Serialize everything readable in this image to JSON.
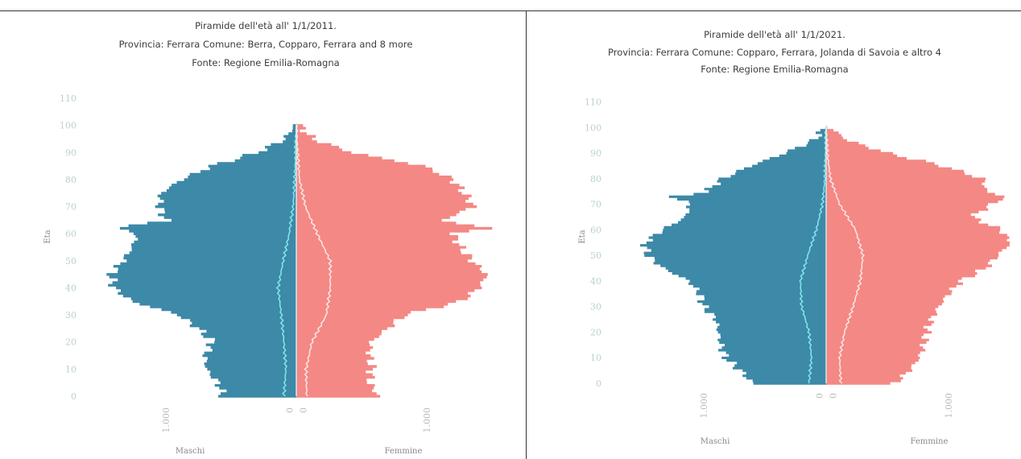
{
  "colors": {
    "male": "#3d89a8",
    "female": "#f48884",
    "male_line": "#7fe3ea",
    "female_line": "#fbe3e2",
    "center_line": "#dbeef4"
  },
  "chart_data": [
    {
      "type": "bar",
      "orientation": "horizontal-population-pyramid",
      "title_lines": [
        "Piramide dell'età all' 1/1/2011.",
        "Provincia: Ferrara  Comune: Berra, Copparo, Ferrara and 8 more",
        "Fonte: Regione Emilia-Romagna"
      ],
      "ylabel": "Eta",
      "y_ticks": [
        "0",
        "10",
        "20",
        "30",
        "40",
        "50",
        "60",
        "70",
        "80",
        "90",
        "100",
        "110"
      ],
      "x_tick_labels": [
        "1.000",
        "0",
        "0",
        "1.000"
      ],
      "left_label": "Maschi",
      "right_label": "Femmine",
      "ylim": [
        0,
        113
      ],
      "xlim": [
        -1600,
        1600
      ],
      "age_profile": [
        [
          0,
          560,
          630
        ],
        [
          5,
          600,
          560
        ],
        [
          10,
          690,
          580
        ],
        [
          15,
          700,
          560
        ],
        [
          20,
          640,
          570
        ],
        [
          25,
          750,
          700
        ],
        [
          30,
          900,
          830
        ],
        [
          35,
          1260,
          1260
        ],
        [
          40,
          1400,
          1400
        ],
        [
          45,
          1420,
          1460
        ],
        [
          50,
          1330,
          1350
        ],
        [
          55,
          1260,
          1260
        ],
        [
          60,
          1220,
          1200
        ],
        [
          62,
          1380,
          1480
        ],
        [
          65,
          1000,
          1120
        ],
        [
          70,
          1050,
          1360
        ],
        [
          75,
          1040,
          1290
        ],
        [
          80,
          880,
          1200
        ],
        [
          85,
          650,
          980
        ],
        [
          90,
          300,
          430
        ],
        [
          95,
          90,
          130
        ],
        [
          100,
          15,
          25
        ]
      ],
      "male_foreign": [
        [
          0,
          95
        ],
        [
          10,
          80
        ],
        [
          20,
          95
        ],
        [
          30,
          115
        ],
        [
          40,
          140
        ],
        [
          50,
          100
        ],
        [
          60,
          55
        ],
        [
          70,
          25
        ],
        [
          80,
          12
        ],
        [
          90,
          5
        ],
        [
          100,
          0
        ]
      ],
      "female_foreign": [
        [
          0,
          80
        ],
        [
          10,
          75
        ],
        [
          20,
          120
        ],
        [
          30,
          230
        ],
        [
          40,
          260
        ],
        [
          50,
          260
        ],
        [
          60,
          160
        ],
        [
          70,
          70
        ],
        [
          80,
          25
        ],
        [
          90,
          10
        ],
        [
          100,
          0
        ]
      ]
    },
    {
      "type": "bar",
      "orientation": "horizontal-population-pyramid",
      "title_lines": [
        "Piramide dell'età all' 1/1/2021.",
        "Provincia: Ferrara  Comune: Copparo, Ferrara, Jolanda di Savoia e altro 4",
        "Fonte: Regione Emilia-Romagna"
      ],
      "ylabel": "Eta",
      "y_ticks": [
        "0",
        "10",
        "20",
        "30",
        "40",
        "50",
        "60",
        "70",
        "80",
        "90",
        "100",
        "110"
      ],
      "x_tick_labels": [
        "1.000",
        "0",
        "0",
        "1.000"
      ],
      "left_label": "Maschi",
      "right_label": "Femmine",
      "ylim": [
        0,
        113
      ],
      "xlim": [
        -1600,
        1600
      ],
      "age_profile": [
        [
          0,
          600,
          560
        ],
        [
          5,
          700,
          680
        ],
        [
          10,
          820,
          760
        ],
        [
          15,
          860,
          800
        ],
        [
          20,
          880,
          820
        ],
        [
          25,
          900,
          860
        ],
        [
          30,
          1000,
          920
        ],
        [
          35,
          1030,
          1000
        ],
        [
          40,
          1120,
          1100
        ],
        [
          45,
          1330,
          1300
        ],
        [
          50,
          1460,
          1400
        ],
        [
          55,
          1480,
          1510
        ],
        [
          60,
          1340,
          1430
        ],
        [
          65,
          1150,
          1190
        ],
        [
          70,
          1110,
          1350
        ],
        [
          73,
          1250,
          1470
        ],
        [
          75,
          980,
          1310
        ],
        [
          80,
          850,
          1280
        ],
        [
          85,
          620,
          960
        ],
        [
          90,
          340,
          510
        ],
        [
          95,
          100,
          180
        ],
        [
          100,
          15,
          30
        ]
      ],
      "male_foreign": [
        [
          0,
          140
        ],
        [
          10,
          120
        ],
        [
          20,
          140
        ],
        [
          30,
          200
        ],
        [
          40,
          210
        ],
        [
          50,
          150
        ],
        [
          60,
          80
        ],
        [
          70,
          30
        ],
        [
          80,
          10
        ],
        [
          90,
          5
        ],
        [
          100,
          0
        ]
      ],
      "female_foreign": [
        [
          0,
          120
        ],
        [
          10,
          110
        ],
        [
          20,
          150
        ],
        [
          30,
          220
        ],
        [
          40,
          280
        ],
        [
          50,
          300
        ],
        [
          60,
          240
        ],
        [
          70,
          110
        ],
        [
          80,
          35
        ],
        [
          90,
          10
        ],
        [
          100,
          0
        ]
      ]
    }
  ]
}
